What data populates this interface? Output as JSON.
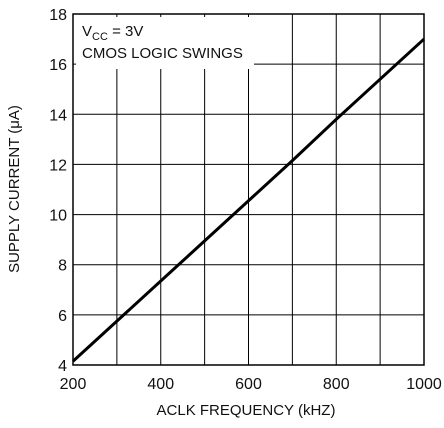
{
  "chart_data": {
    "type": "line",
    "xlabel": "ACLK FREQUENCY (kHZ)",
    "ylabel": "SUPPLY CURRENT (μA)",
    "xlim": [
      200,
      1000
    ],
    "ylim": [
      4,
      18
    ],
    "x_ticks": [
      200,
      400,
      600,
      800,
      1000
    ],
    "y_ticks": [
      4,
      6,
      8,
      10,
      12,
      14,
      16,
      18
    ],
    "x_minor_step": 100,
    "y_minor_step": 2,
    "grid": true,
    "annotation": {
      "line1_main": "V",
      "line1_sub": "CC",
      "line1_rest": " = 3V",
      "line2": "CMOS LOGIC SWINGS"
    },
    "series": [
      {
        "x": [
          200,
          300,
          400,
          500,
          600,
          700,
          800,
          900,
          1000
        ],
        "y": [
          4.15,
          5.75,
          7.35,
          8.95,
          10.55,
          12.15,
          13.8,
          15.4,
          17.0
        ],
        "color": "#000000"
      }
    ]
  }
}
